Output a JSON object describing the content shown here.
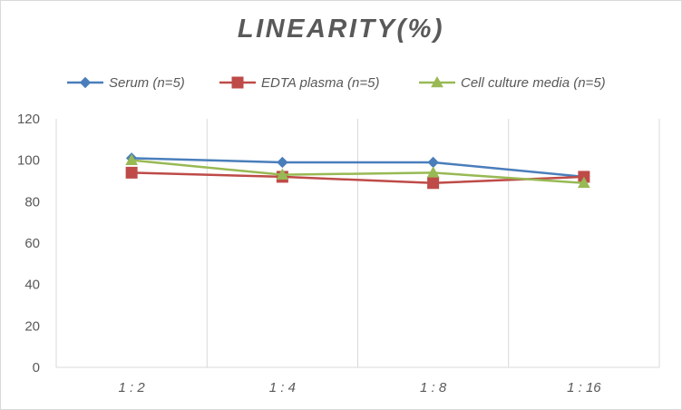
{
  "chart_data": {
    "type": "line",
    "title": "LINEARITY(%)",
    "categories": [
      "1:2",
      "1:4",
      "1:8",
      "1:16"
    ],
    "ylim": [
      0,
      120
    ],
    "yticks": [
      0,
      20,
      40,
      60,
      80,
      100,
      120
    ],
    "xlabel": "",
    "ylabel": "",
    "grid": "vertical",
    "legend": "top",
    "series": [
      {
        "name": "Serum (n=5)",
        "values": [
          101,
          99,
          99,
          92
        ],
        "color": "#4a7ebb",
        "marker": "diamond"
      },
      {
        "name": "EDTA plasma (n=5)",
        "values": [
          94,
          92,
          89,
          92
        ],
        "color": "#be4b48",
        "marker": "square"
      },
      {
        "name": "Cell culture media (n=5)",
        "values": [
          100,
          93,
          94,
          89
        ],
        "color": "#98b954",
        "marker": "triangle"
      }
    ]
  }
}
